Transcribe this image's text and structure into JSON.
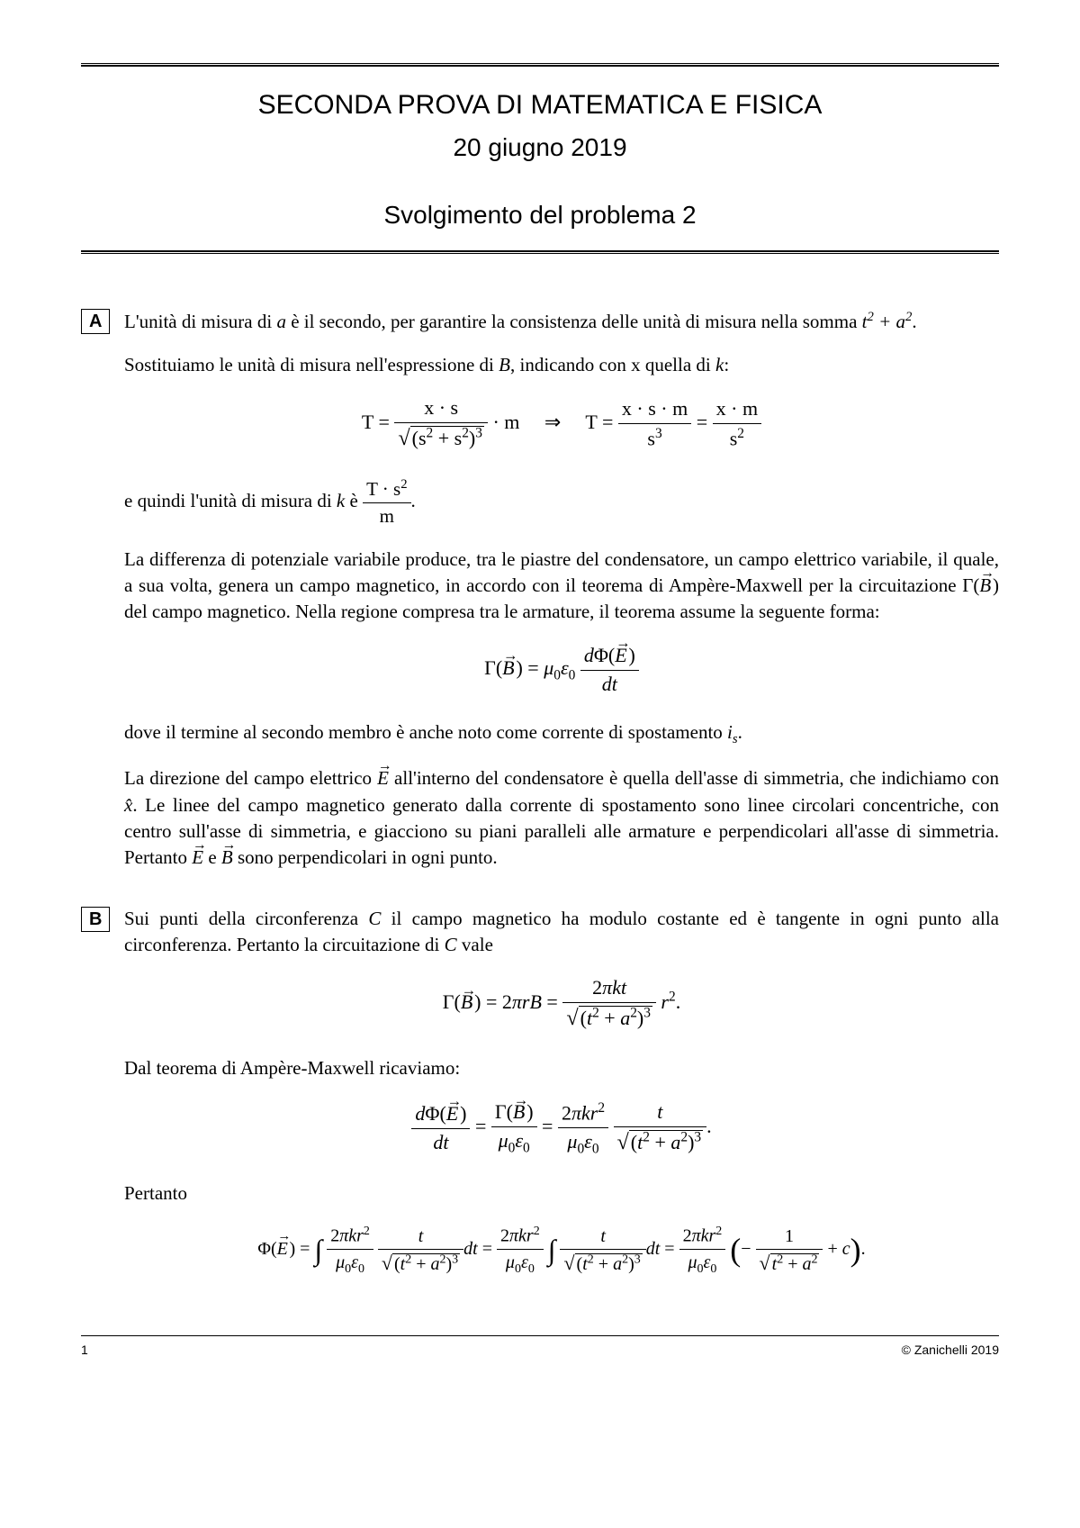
{
  "header": {
    "title": "SECONDA PROVA DI MATEMATICA E FISICA",
    "date": "20 giugno 2019",
    "subtitle": "Svolgimento del problema 2"
  },
  "sectionA": {
    "label": "A",
    "p1_a": "L'unità di misura di ",
    "p1_var_a": "a",
    "p1_b": " è il secondo, per garantire la consistenza delle unità di misura nella somma ",
    "p1_expr": "t² + a²",
    "p1_c": ".",
    "p2_a": "Sostituiamo le unità di misura nell'espressione di ",
    "p2_var_B": "B",
    "p2_b": ", indicando con x quella di ",
    "p2_var_k": "k",
    "p2_c": ":",
    "eq1_lhs": "T = ",
    "eq1_num": "x · s",
    "eq1_den_pre": "(s² + s²)³",
    "eq1_mult": " · m",
    "eq1_arrow": "⇒",
    "eq1_rhs1": "T = ",
    "eq1_num2": "x · s · m",
    "eq1_den2": "s³",
    "eq1_eq": " = ",
    "eq1_num3": "x · m",
    "eq1_den3": "s²",
    "p3_a": "e quindi l'unità di misura di ",
    "p3_var_k": "k",
    "p3_b": " è ",
    "p3_frac_num": "T · s²",
    "p3_frac_den": "m",
    "p3_c": ".",
    "p4": "La differenza di potenziale variabile produce, tra le piastre del condensatore, un campo elettrico variabile, il quale, a sua volta, genera un campo magnetico, in accordo con il teorema di Ampère-Maxwell per la circuitazione Γ(B⃗) del campo magnetico. Nella regione compresa tra le armature, il teorema assume la seguente forma:",
    "eq2_lhs": "Γ(",
    "eq2_B": "B",
    "eq2_mid": ") = μ₀ε₀",
    "eq2_num": "dΦ(E⃗)",
    "eq2_den": "dt",
    "p5_a": "dove il termine al secondo membro è anche noto come corrente di spostamento ",
    "p5_var": "iₛ",
    "p5_b": ".",
    "p6_a": "La direzione del campo elettrico ",
    "p6_E": "E",
    "p6_b": " all'interno del condensatore è quella dell'asse di simmetria, che indichiamo con ",
    "p6_x": "x̂",
    "p6_c": ". Le linee del campo magnetico generato dalla corrente di spostamento sono linee circolari concentriche, con centro sull'asse di simmetria, e giacciono su piani paralleli alle armature e perpendicolari all'asse di simmetria. Pertanto ",
    "p6_d": " e ",
    "p6_B": "B",
    "p6_e": " sono perpendicolari in ogni punto."
  },
  "sectionB": {
    "label": "B",
    "p1_a": "Sui punti della circonferenza ",
    "p1_C": "C",
    "p1_b": " il campo magnetico ha modulo costante ed è tangente in ogni punto alla circonferenza. Pertanto la circuitazione di ",
    "p1_c": " vale",
    "eq1_a": "Γ(",
    "eq1_B": "B",
    "eq1_b": ") = 2πrB = ",
    "eq1_num": "2πkt",
    "eq1_den": "(t² + a²)³",
    "eq1_r2": "r²",
    "eq1_dot": ".",
    "p2": "Dal teorema di Ampère-Maxwell ricaviamo:",
    "eq2_num1": "dΦ(E⃗)",
    "eq2_den1": "dt",
    "eq2_eq1": " = ",
    "eq2_num2": "Γ(B⃗)",
    "eq2_den2": "μ₀ε₀",
    "eq2_eq2": " = ",
    "eq2_num3": "2πkr²",
    "eq2_den3": "μ₀ε₀",
    "eq2_num4": "t",
    "eq2_den4": "(t² + a²)³",
    "eq2_dot": ".",
    "p3": "Pertanto",
    "eq3_phi": "Φ(",
    "eq3_E": "E",
    "eq3_a": ") = ",
    "eq3_int": "∫",
    "eq3_num1": "2πkr²",
    "eq3_den1": "μ₀ε₀",
    "eq3_num2": "t",
    "eq3_den2": "(t² + a²)³",
    "eq3_dt": "dt = ",
    "eq3_num3": "2πkr²",
    "eq3_den3": "μ₀ε₀",
    "eq3_num4": "t",
    "eq3_den4": "(t² + a²)³",
    "eq3_dt2": "dt = ",
    "eq3_num5": "2πkr²",
    "eq3_den5": "μ₀ε₀",
    "eq3_paren_a": "−",
    "eq3_num6": "1",
    "eq3_den6": "t² + a²",
    "eq3_plus_c": " + c",
    "eq3_dot": "."
  },
  "footer": {
    "page": "1",
    "copyright": "© Zanichelli 2019"
  }
}
